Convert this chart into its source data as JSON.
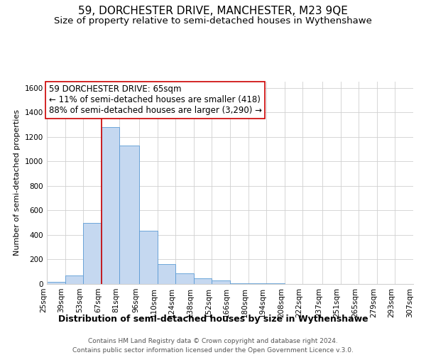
{
  "title": "59, DORCHESTER DRIVE, MANCHESTER, M23 9QE",
  "subtitle": "Size of property relative to semi-detached houses in Wythenshawe",
  "xlabel": "Distribution of semi-detached houses by size in Wythenshawe",
  "ylabel": "Number of semi-detached properties",
  "footer_lines": [
    "Contains HM Land Registry data © Crown copyright and database right 2024.",
    "Contains public sector information licensed under the Open Government Licence v.3.0."
  ],
  "annotation_title": "59 DORCHESTER DRIVE: 65sqm",
  "annotation_line1": "← 11% of semi-detached houses are smaller (418)",
  "annotation_line2": "88% of semi-detached houses are larger (3,290) →",
  "property_size": 65,
  "bin_edges": [
    25,
    39,
    53,
    67,
    81,
    96,
    110,
    124,
    138,
    152,
    166,
    180,
    194,
    208,
    222,
    237,
    251,
    265,
    279,
    293,
    307
  ],
  "bar_heights": [
    20,
    70,
    500,
    1280,
    1130,
    435,
    160,
    85,
    47,
    30,
    5,
    5,
    3,
    2,
    1,
    1,
    0,
    0,
    0,
    0
  ],
  "bar_color": "#c5d8f0",
  "bar_edge_color": "#5b9bd5",
  "vline_color": "#cc0000",
  "vline_x": 67,
  "ylim": [
    0,
    1650
  ],
  "yticks": [
    0,
    200,
    400,
    600,
    800,
    1000,
    1200,
    1400,
    1600
  ],
  "background_color": "#ffffff",
  "grid_color": "#d0d0d0",
  "annotation_box_color": "#ffffff",
  "annotation_box_edge": "#cc0000",
  "title_fontsize": 11,
  "subtitle_fontsize": 9.5,
  "xlabel_fontsize": 9,
  "ylabel_fontsize": 8,
  "tick_fontsize": 7.5,
  "annotation_fontsize": 8.5,
  "footer_fontsize": 6.5
}
